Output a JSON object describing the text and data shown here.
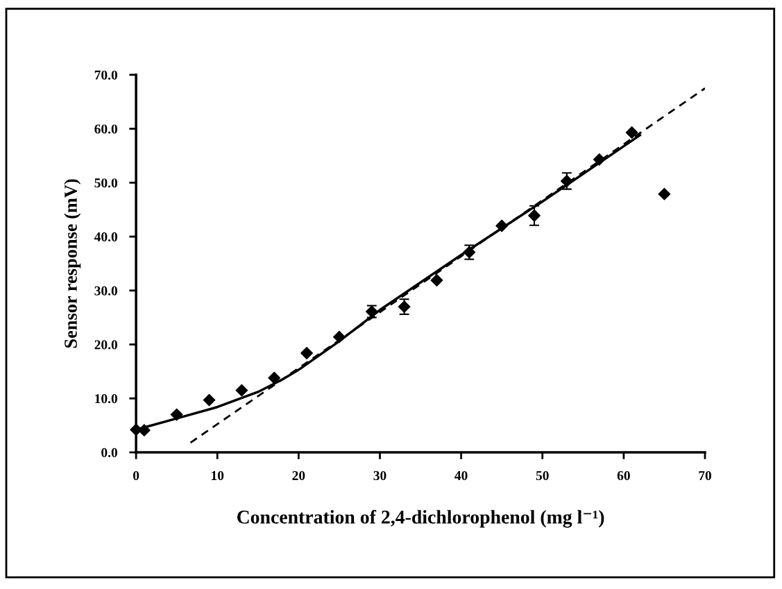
{
  "chart_data": {
    "type": "scatter",
    "xlabel": "Concentration of 2,4-dichlorophenol (mg l⁻¹)",
    "ylabel": "Sensor response (mV)",
    "x": [
      0,
      1,
      5,
      9,
      13,
      17,
      21,
      25,
      29,
      33,
      37,
      41,
      45,
      49,
      53,
      57,
      61,
      65
    ],
    "series": [
      {
        "color": "#000000",
        "marker": "diamond",
        "values": [
          4.2,
          4.1,
          7.0,
          9.7,
          11.5,
          13.8,
          18.4,
          21.4,
          26.1,
          27.0,
          31.9,
          37.1,
          42.0,
          43.9,
          50.3,
          54.3,
          59.3,
          47.9
        ],
        "errors": [
          null,
          null,
          null,
          null,
          null,
          null,
          null,
          null,
          1.1,
          1.4,
          null,
          1.3,
          null,
          1.8,
          1.5,
          null,
          null,
          null
        ]
      },
      {
        "type": "line",
        "color": "#000000",
        "line_style": "dashed",
        "marker": "none",
        "x": [
          6.7,
          70
        ],
        "values": [
          1.8,
          67.5
        ]
      },
      {
        "type": "line",
        "color": "#000000",
        "line_style": "solid",
        "marker": "none",
        "x": [
          0,
          5,
          10,
          15,
          18,
          20,
          25,
          30,
          40,
          50,
          62
        ],
        "values": [
          4.2,
          6.3,
          8.4,
          11.2,
          13.5,
          15.3,
          20.6,
          26.4,
          36.6,
          46.5,
          58.8
        ]
      }
    ],
    "xlim": [
      0,
      70
    ],
    "ylim": [
      0,
      70
    ],
    "xticks": [
      0,
      10,
      20,
      30,
      40,
      50,
      60,
      70
    ],
    "yticks": [
      {
        "value": 0,
        "label": "0.0"
      },
      {
        "value": 10,
        "label": "10.0"
      },
      {
        "value": 20,
        "label": "20.0"
      },
      {
        "value": 30,
        "label": "30.0"
      },
      {
        "value": 40,
        "label": "40.0"
      },
      {
        "value": 50,
        "label": "50.0"
      },
      {
        "value": 60,
        "label": "60.0"
      },
      {
        "value": 70,
        "label": "70.0"
      }
    ],
    "grid": false
  }
}
